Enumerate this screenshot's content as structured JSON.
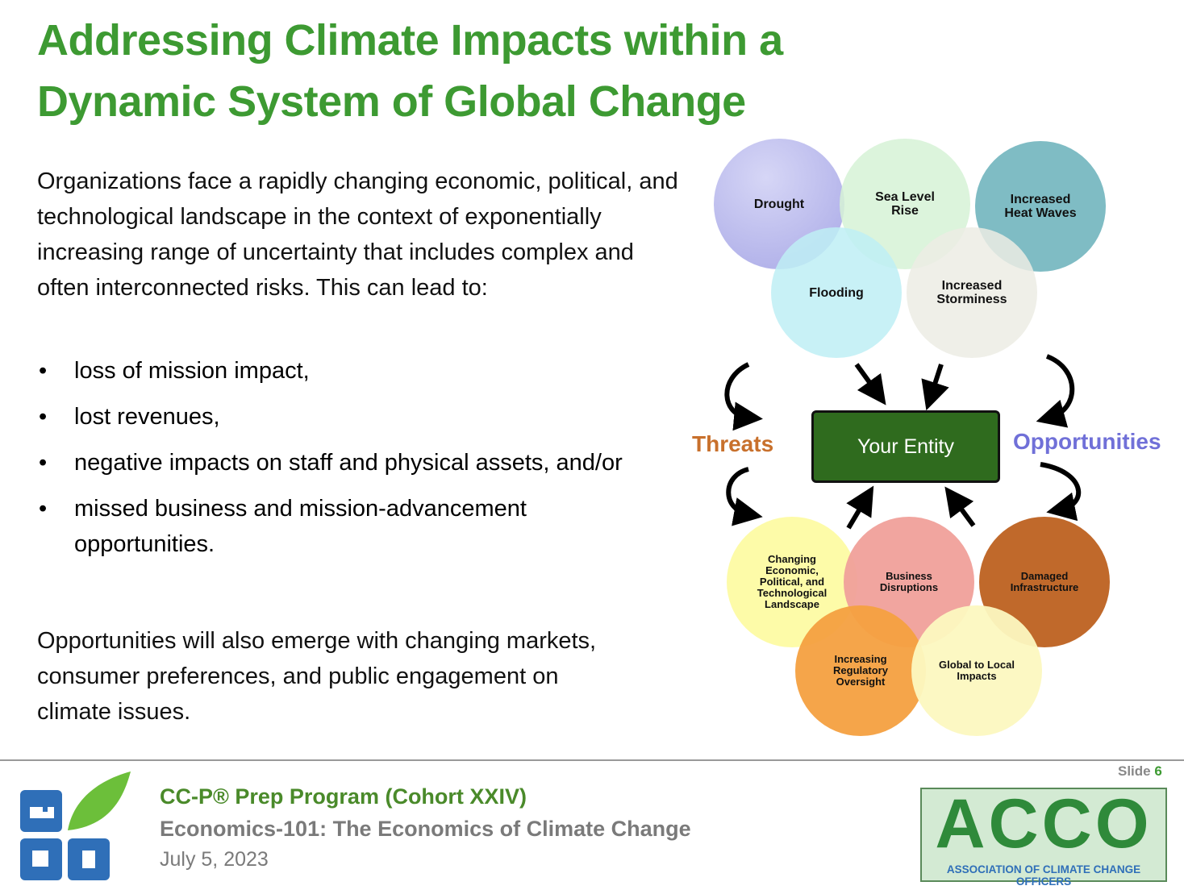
{
  "header": {
    "title_lines": [
      "Addressing Climate Impacts within a",
      "Dynamic System of Global Change"
    ]
  },
  "body": {
    "intro": "Organizations face a rapidly changing economic, political, and technological landscape in the context of exponentially increasing range of uncertainty that includes complex and often interconnected risks. This can lead to:",
    "bullets": [
      "loss of mission impact,",
      "lost revenues,",
      "negative impacts on staff and physical assets, and/or",
      "missed business and mission-advancement opportunities."
    ],
    "closing": "Opportunities will also emerge with changing markets, consumer preferences, and public engagement on climate issues."
  },
  "diagram": {
    "top_nodes": [
      "Drought",
      "Sea Level Rise",
      "Increased Heat Waves",
      "Flooding",
      "Increased Storminess"
    ],
    "center": "Your Entity",
    "left_label": "Threats",
    "right_label": "Opportunities",
    "bottom_nodes": [
      "Changing Economic, Political, and Technological Landscape",
      "Business Disruptions",
      "Damaged Infrastructure",
      "Increasing Regulatory Oversight",
      "Global to Local Impacts"
    ]
  },
  "footer": {
    "program": "CC-P® Prep Program (Cohort XXIV)",
    "course": "Economics-101: The Economics of Climate Change",
    "date": "July 5, 2023",
    "slide_label": "Slide",
    "slide_number": "6",
    "logo_text": "ACCO",
    "logo_subtitle": "ASSOCIATION OF CLIMATE CHANGE OFFICERS"
  }
}
